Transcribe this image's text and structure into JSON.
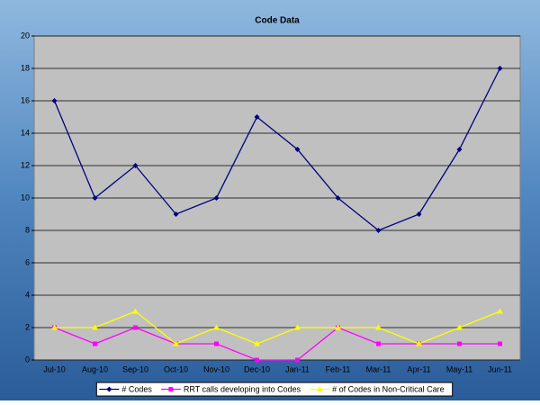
{
  "chart_data": {
    "type": "line",
    "title": "Code Data",
    "categories": [
      "Jul-10",
      "Aug-10",
      "Sep-10",
      "Oct-10",
      "Nov-10",
      "Dec-10",
      "Jan-11",
      "Feb-11",
      "Mar-11",
      "Apr-11",
      "May-11",
      "Jun-11"
    ],
    "series": [
      {
        "name": "# Codes",
        "color": "#000080",
        "marker": "diamond",
        "values": [
          16,
          10,
          12,
          9,
          10,
          15,
          13,
          10,
          8,
          9,
          13,
          18
        ]
      },
      {
        "name": "RRT calls developing into Codes",
        "color": "#ff00ff",
        "marker": "square",
        "values": [
          2,
          1,
          2,
          1,
          1,
          0,
          0,
          2,
          1,
          1,
          1,
          1
        ]
      },
      {
        "name": "# of Codes in Non-Critical Care",
        "color": "#ffff00",
        "marker": "triangle",
        "values": [
          2,
          2,
          3,
          1,
          2,
          1,
          2,
          2,
          2,
          1,
          2,
          3
        ]
      }
    ],
    "ylim": [
      0,
      20
    ],
    "yticks": [
      0,
      2,
      4,
      6,
      8,
      10,
      12,
      14,
      16,
      18,
      20
    ],
    "grid": true,
    "legend": "bottom"
  }
}
